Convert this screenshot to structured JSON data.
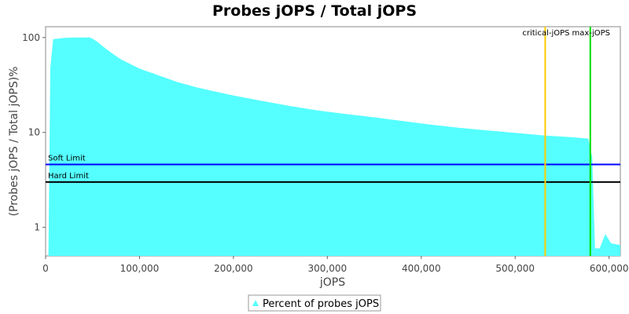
{
  "chart_data": {
    "type": "area",
    "title": "Probes jOPS / Total jOPS",
    "xlabel": "jOPS",
    "ylabel": "(Probes jOPS / Total jOPS)%",
    "y_scale": "log",
    "xlim": [
      0,
      612000
    ],
    "ylim": [
      0.5,
      130
    ],
    "x_ticks": [
      0,
      100000,
      200000,
      300000,
      400000,
      500000,
      600000
    ],
    "x_tick_labels": [
      "0",
      "100,000",
      "200,000",
      "300,000",
      "400,000",
      "500,000",
      "600,000"
    ],
    "y_ticks": [
      1,
      10,
      100
    ],
    "y_tick_labels": [
      "1",
      "10",
      "100"
    ],
    "grid": false,
    "series": [
      {
        "name": "Percent of probes jOPS",
        "color": "#55ffff",
        "x": [
          3000,
          5000,
          8000,
          20000,
          30000,
          40000,
          47000,
          50000,
          55000,
          60000,
          70000,
          80000,
          100000,
          120000,
          140000,
          160000,
          180000,
          200000,
          230000,
          260000,
          290000,
          320000,
          350000,
          380000,
          410000,
          440000,
          470000,
          500000,
          530000,
          560000,
          578000,
          582000,
          585000,
          590000,
          596000,
          602000,
          612000
        ],
        "y": [
          0.5,
          48,
          96,
          99,
          100,
          100,
          100,
          97,
          90,
          82,
          69,
          59,
          47,
          40,
          34,
          30,
          27,
          24.5,
          21.5,
          19,
          17,
          15.6,
          14.4,
          13.2,
          12.1,
          11.2,
          10.5,
          9.9,
          9.3,
          8.9,
          8.6,
          5.5,
          0.6,
          0.6,
          0.85,
          0.68,
          0.65
        ]
      }
    ],
    "reference_lines": [
      {
        "orientation": "horizontal",
        "value": 4.6,
        "color": "#0000ff",
        "label": "Soft Limit"
      },
      {
        "orientation": "horizontal",
        "value": 3.0,
        "color": "#000000",
        "label": "Hard Limit"
      },
      {
        "orientation": "vertical",
        "value": 532000,
        "color": "#ffcc00",
        "label": "critical-jOPS"
      },
      {
        "orientation": "vertical",
        "value": 580000,
        "color": "#00dd00",
        "label": "max-jOPS"
      }
    ],
    "legend": {
      "position": "bottom-center",
      "entries": [
        "Percent of probes jOPS"
      ]
    }
  }
}
